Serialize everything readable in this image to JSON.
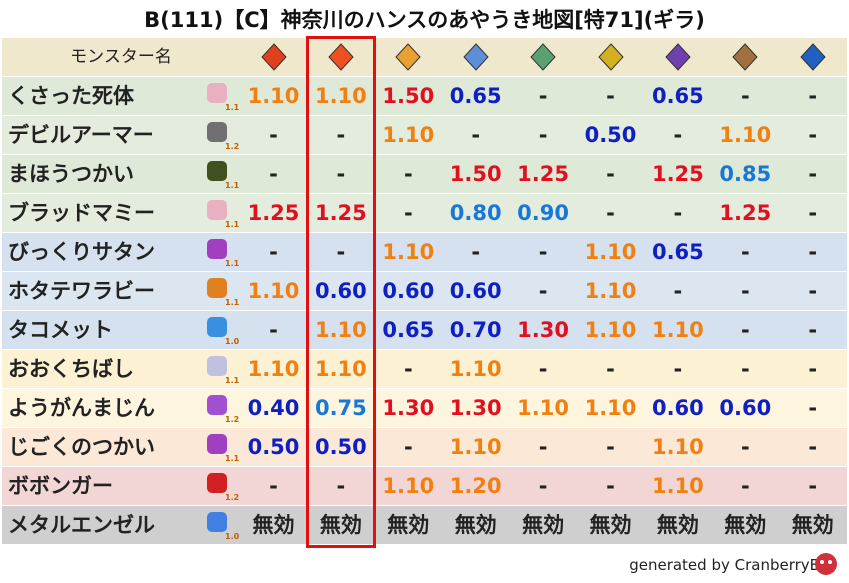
{
  "title": "B(111)【C】神奈川のハンスのあやうき地図[特71](ギラ)",
  "table": {
    "header": "モンスター名",
    "rows": [
      {
        "name": "くさった死体",
        "level": "1.1",
        "cells": [
          "1.10",
          "1.10",
          "1.50",
          "0.65",
          "-",
          "-",
          "0.65",
          "-",
          "-"
        ]
      },
      {
        "name": "デビルアーマー",
        "level": "1.2",
        "cells": [
          "-",
          "-",
          "1.10",
          "-",
          "-",
          "0.50",
          "-",
          "1.10",
          "-"
        ]
      },
      {
        "name": "まほうつかい",
        "level": "1.1",
        "cells": [
          "-",
          "-",
          "-",
          "1.50",
          "1.25",
          "-",
          "1.25",
          "0.85",
          "-"
        ]
      },
      {
        "name": "ブラッドマミー",
        "level": "1.1",
        "cells": [
          "1.25",
          "1.25",
          "-",
          "0.80",
          "0.90",
          "-",
          "-",
          "1.25",
          "-"
        ]
      },
      {
        "name": "びっくりサタン",
        "level": "1.1",
        "cells": [
          "-",
          "-",
          "1.10",
          "-",
          "-",
          "1.10",
          "0.65",
          "-",
          "-"
        ]
      },
      {
        "name": "ホタテワラビー",
        "level": "1.1",
        "cells": [
          "1.10",
          "0.60",
          "0.60",
          "0.60",
          "-",
          "1.10",
          "-",
          "-",
          "-"
        ]
      },
      {
        "name": "タコメット",
        "level": "1.0",
        "cells": [
          "-",
          "1.10",
          "0.65",
          "0.70",
          "1.30",
          "1.10",
          "1.10",
          "-",
          "-"
        ]
      },
      {
        "name": "おおくちばし",
        "level": "1.1",
        "cells": [
          "1.10",
          "1.10",
          "-",
          "1.10",
          "-",
          "-",
          "-",
          "-",
          "-"
        ]
      },
      {
        "name": "ようがんまじん",
        "level": "1.2",
        "cells": [
          "0.40",
          "0.75",
          "1.30",
          "1.30",
          "1.10",
          "1.10",
          "0.60",
          "0.60",
          "-"
        ]
      },
      {
        "name": "じごくのつかい",
        "level": "1.1",
        "cells": [
          "0.50",
          "0.50",
          "-",
          "1.10",
          "-",
          "-",
          "1.10",
          "-",
          "-"
        ]
      },
      {
        "name": "ボボンガー",
        "level": "1.2",
        "cells": [
          "-",
          "-",
          "1.10",
          "1.20",
          "-",
          "-",
          "1.10",
          "-",
          "-"
        ]
      },
      {
        "name": "メタルエンゼル",
        "level": "1.0",
        "cells": [
          "無効",
          "無効",
          "無効",
          "無効",
          "無効",
          "無効",
          "無効",
          "無効",
          "無効"
        ]
      }
    ]
  },
  "footer": "generated by CranberryBot"
}
